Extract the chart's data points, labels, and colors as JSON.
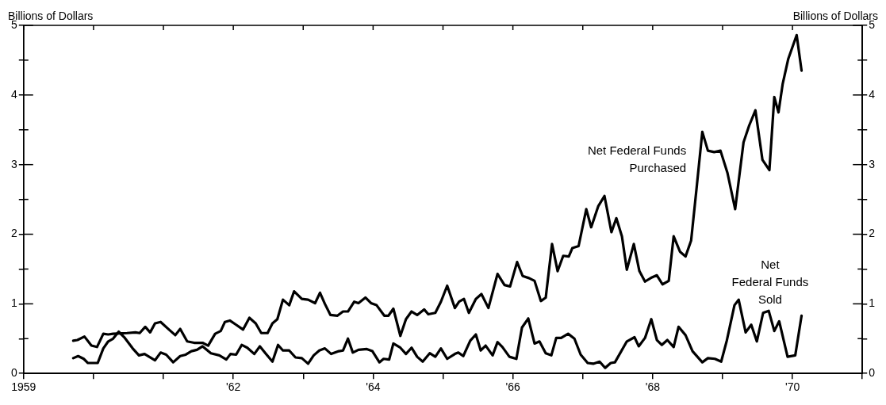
{
  "chart_data": {
    "type": "line",
    "ylabel": "Billions of Dollars",
    "y2label": "Billions of Dollars",
    "xlim": [
      1959,
      1971
    ],
    "xticks": [
      {
        "value": 1959,
        "label": "1959"
      },
      {
        "value": 1960,
        "label": null
      },
      {
        "value": 1961,
        "label": null
      },
      {
        "value": 1962,
        "label": "'62"
      },
      {
        "value": 1963,
        "label": null
      },
      {
        "value": 1964,
        "label": "'64"
      },
      {
        "value": 1965,
        "label": null
      },
      {
        "value": 1966,
        "label": "'66"
      },
      {
        "value": 1967,
        "label": null
      },
      {
        "value": 1968,
        "label": "'68"
      },
      {
        "value": 1969,
        "label": null
      },
      {
        "value": 1970,
        "label": "'70"
      },
      {
        "value": 1971,
        "label": null
      }
    ],
    "ylim": [
      0,
      5
    ],
    "yticks": [
      0,
      {
        "value": 0.5,
        "label": null
      },
      1,
      {
        "value": 1.5,
        "label": null
      },
      2,
      {
        "value": 2.5,
        "label": null
      },
      3,
      {
        "value": 3.5,
        "label": null
      },
      4,
      {
        "value": 4.5,
        "label": null
      },
      5
    ],
    "y2lim": [
      0,
      5
    ],
    "y2ticks": [
      0,
      {
        "value": 0.5,
        "label": null
      },
      1,
      {
        "value": 1.5,
        "label": null
      },
      2,
      {
        "value": 2.5,
        "label": null
      },
      3,
      {
        "value": 3.5,
        "label": null
      },
      4,
      {
        "value": 4.5,
        "label": null
      },
      5
    ],
    "grid": false,
    "legend": false,
    "marker": "none",
    "line_style": "solid",
    "series": [
      {
        "name": "Net Federal Funds Purchased",
        "color": "#000000",
        "x": [
          1959.71,
          1959.77,
          1959.87,
          1959.97,
          1960.05,
          1960.14,
          1960.21,
          1960.28,
          1960.48,
          1960.6,
          1960.66,
          1960.74,
          1960.81,
          1960.88,
          1960.96,
          1961.08,
          1961.17,
          1961.24,
          1961.34,
          1961.44,
          1961.56,
          1961.64,
          1961.74,
          1961.82,
          1961.88,
          1961.95,
          1962.04,
          1962.14,
          1962.23,
          1962.32,
          1962.4,
          1962.49,
          1962.56,
          1962.63,
          1962.71,
          1962.8,
          1962.87,
          1962.98,
          1963.07,
          1963.17,
          1963.24,
          1963.31,
          1963.39,
          1963.49,
          1963.57,
          1963.64,
          1963.73,
          1963.79,
          1963.89,
          1963.97,
          1964.05,
          1964.16,
          1964.22,
          1964.29,
          1964.39,
          1964.47,
          1964.55,
          1964.63,
          1964.73,
          1964.79,
          1964.89,
          1964.97,
          1965.06,
          1965.17,
          1965.23,
          1965.3,
          1965.37,
          1965.47,
          1965.55,
          1965.65,
          1965.78,
          1965.88,
          1965.96,
          1966.06,
          1966.14,
          1966.23,
          1966.31,
          1966.4,
          1966.47,
          1966.56,
          1966.64,
          1966.72,
          1966.8,
          1966.85,
          1966.94,
          1967.05,
          1967.12,
          1967.22,
          1967.31,
          1967.41,
          1967.48,
          1967.56,
          1967.63,
          1967.73,
          1967.81,
          1967.89,
          1967.99,
          1968.06,
          1968.14,
          1968.23,
          1968.3,
          1968.39,
          1968.47,
          1968.55,
          1968.63,
          1968.71,
          1968.79,
          1968.88,
          1968.97,
          1969.07,
          1969.18,
          1969.3,
          1969.38,
          1969.47,
          1969.57,
          1969.67,
          1969.74,
          1969.8,
          1969.86,
          1969.94,
          1970.06,
          1970.13
        ],
        "values": [
          0.47,
          0.48,
          0.53,
          0.4,
          0.38,
          0.57,
          0.56,
          0.57,
          0.58,
          0.59,
          0.58,
          0.67,
          0.59,
          0.72,
          0.74,
          0.63,
          0.55,
          0.64,
          0.46,
          0.44,
          0.44,
          0.4,
          0.57,
          0.61,
          0.74,
          0.76,
          0.7,
          0.63,
          0.8,
          0.72,
          0.58,
          0.58,
          0.72,
          0.78,
          1.06,
          0.98,
          1.18,
          1.07,
          1.06,
          1.01,
          1.16,
          1.0,
          0.84,
          0.83,
          0.89,
          0.89,
          1.03,
          1.01,
          1.09,
          1.01,
          0.98,
          0.83,
          0.83,
          0.93,
          0.54,
          0.78,
          0.89,
          0.84,
          0.92,
          0.85,
          0.87,
          1.03,
          1.26,
          0.94,
          1.03,
          1.07,
          0.87,
          1.07,
          1.14,
          0.94,
          1.43,
          1.27,
          1.25,
          1.6,
          1.4,
          1.37,
          1.33,
          1.04,
          1.09,
          1.86,
          1.47,
          1.69,
          1.68,
          1.8,
          1.83,
          2.36,
          2.1,
          2.4,
          2.55,
          2.03,
          2.23,
          1.97,
          1.49,
          1.86,
          1.47,
          1.32,
          1.38,
          1.41,
          1.28,
          1.33,
          1.97,
          1.75,
          1.68,
          1.91,
          2.68,
          3.47,
          3.2,
          3.18,
          3.2,
          2.88,
          2.36,
          3.32,
          3.56,
          3.78,
          3.07,
          2.92,
          3.97,
          3.75,
          4.16,
          4.52,
          4.86,
          4.35
        ]
      },
      {
        "name": "Net Federal Funds Sold",
        "color": "#000000",
        "x": [
          1959.71,
          1959.78,
          1959.86,
          1959.92,
          1960.0,
          1960.06,
          1960.14,
          1960.21,
          1960.28,
          1960.36,
          1960.44,
          1960.56,
          1960.65,
          1960.73,
          1960.88,
          1960.96,
          1961.04,
          1961.14,
          1961.24,
          1961.32,
          1961.4,
          1961.48,
          1961.56,
          1961.68,
          1961.8,
          1961.9,
          1961.96,
          1962.04,
          1962.12,
          1962.2,
          1962.3,
          1962.38,
          1962.46,
          1962.56,
          1962.64,
          1962.71,
          1962.8,
          1962.89,
          1962.98,
          1963.07,
          1963.15,
          1963.23,
          1963.31,
          1963.4,
          1963.51,
          1963.57,
          1963.64,
          1963.71,
          1963.79,
          1963.91,
          1963.99,
          1964.09,
          1964.15,
          1964.23,
          1964.29,
          1964.39,
          1964.47,
          1964.55,
          1964.63,
          1964.71,
          1964.81,
          1964.89,
          1964.97,
          1965.06,
          1965.17,
          1965.22,
          1965.29,
          1965.39,
          1965.47,
          1965.54,
          1965.61,
          1965.71,
          1965.78,
          1965.85,
          1965.95,
          1966.05,
          1966.13,
          1966.22,
          1966.31,
          1966.38,
          1966.47,
          1966.55,
          1966.62,
          1966.69,
          1966.79,
          1966.88,
          1966.97,
          1967.07,
          1967.15,
          1967.24,
          1967.32,
          1967.4,
          1967.46,
          1967.63,
          1967.74,
          1967.8,
          1967.89,
          1967.98,
          1968.06,
          1968.13,
          1968.21,
          1968.3,
          1968.37,
          1968.47,
          1968.57,
          1968.71,
          1968.79,
          1968.89,
          1968.98,
          1969.06,
          1969.17,
          1969.23,
          1969.33,
          1969.41,
          1969.49,
          1969.58,
          1969.66,
          1969.74,
          1969.81,
          1969.93,
          1970.04,
          1970.13
        ],
        "values": [
          0.22,
          0.25,
          0.21,
          0.15,
          0.15,
          0.15,
          0.36,
          0.46,
          0.5,
          0.6,
          0.52,
          0.36,
          0.26,
          0.28,
          0.19,
          0.3,
          0.27,
          0.16,
          0.25,
          0.27,
          0.32,
          0.34,
          0.39,
          0.29,
          0.26,
          0.2,
          0.28,
          0.27,
          0.41,
          0.37,
          0.28,
          0.39,
          0.29,
          0.17,
          0.41,
          0.33,
          0.33,
          0.23,
          0.22,
          0.14,
          0.26,
          0.33,
          0.36,
          0.28,
          0.32,
          0.33,
          0.5,
          0.3,
          0.34,
          0.35,
          0.32,
          0.16,
          0.21,
          0.2,
          0.43,
          0.37,
          0.28,
          0.37,
          0.24,
          0.17,
          0.29,
          0.24,
          0.36,
          0.21,
          0.28,
          0.3,
          0.25,
          0.47,
          0.56,
          0.33,
          0.4,
          0.26,
          0.45,
          0.38,
          0.24,
          0.21,
          0.66,
          0.79,
          0.43,
          0.46,
          0.29,
          0.26,
          0.51,
          0.51,
          0.57,
          0.5,
          0.27,
          0.15,
          0.14,
          0.17,
          0.08,
          0.15,
          0.16,
          0.46,
          0.52,
          0.39,
          0.51,
          0.78,
          0.48,
          0.41,
          0.48,
          0.38,
          0.67,
          0.55,
          0.32,
          0.16,
          0.22,
          0.21,
          0.17,
          0.47,
          0.98,
          1.06,
          0.59,
          0.7,
          0.46,
          0.87,
          0.9,
          0.61,
          0.75,
          0.24,
          0.26,
          0.83
        ]
      }
    ]
  }
}
